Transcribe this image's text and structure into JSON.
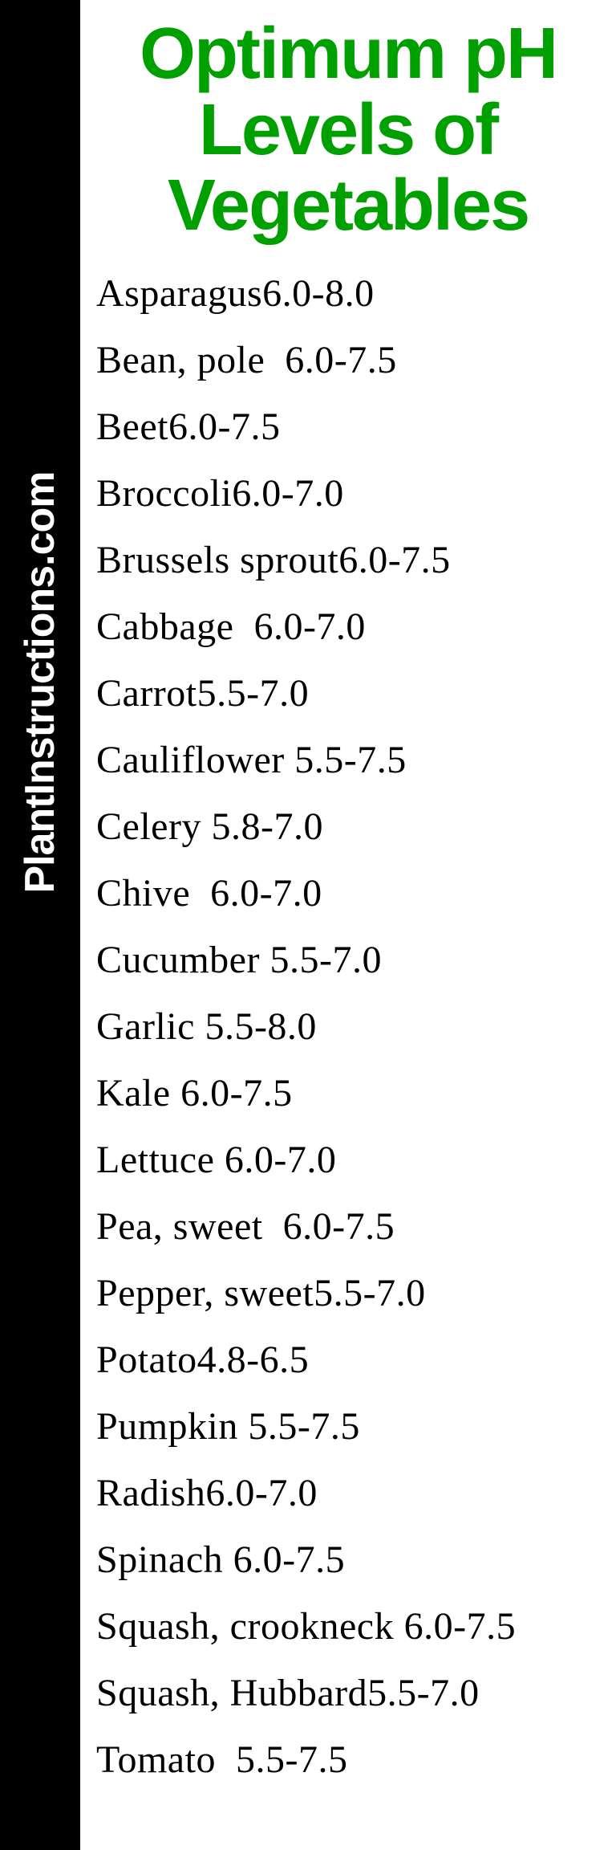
{
  "title_line1": "Optimum pH",
  "title_line2": "Levels of",
  "title_line3": "Vegetables",
  "title_color": "#00a000",
  "sidebar_text": "PlantInstructions.com",
  "sidebar_bg": "#000000",
  "sidebar_text_color": "#ffffff",
  "list_font_family": "Comic Sans MS",
  "list_font_size": 48,
  "title_font_size": 90,
  "vegetables": [
    {
      "name": "Asparagus",
      "sep": "",
      "range": "6.0-8.0"
    },
    {
      "name": "Bean, pole",
      "sep": "  ",
      "range": "6.0-7.5"
    },
    {
      "name": "Beet",
      "sep": "",
      "range": "6.0-7.5"
    },
    {
      "name": "Broccoli",
      "sep": "",
      "range": "6.0-7.0"
    },
    {
      "name": "Brussels sprout",
      "sep": "",
      "range": "6.0-7.5"
    },
    {
      "name": "Cabbage",
      "sep": "  ",
      "range": "6.0-7.0"
    },
    {
      "name": "Carrot",
      "sep": "",
      "range": "5.5-7.0"
    },
    {
      "name": "Cauliflower",
      "sep": " ",
      "range": "5.5-7.5"
    },
    {
      "name": "Celery",
      "sep": " ",
      "range": "5.8-7.0"
    },
    {
      "name": "Chive",
      "sep": "  ",
      "range": "6.0-7.0"
    },
    {
      "name": "Cucumber",
      "sep": " ",
      "range": "5.5-7.0"
    },
    {
      "name": "Garlic",
      "sep": " ",
      "range": "5.5-8.0"
    },
    {
      "name": "Kale",
      "sep": " ",
      "range": "6.0-7.5"
    },
    {
      "name": "Lettuce",
      "sep": " ",
      "range": "6.0-7.0"
    },
    {
      "name": "Pea, sweet",
      "sep": "  ",
      "range": "6.0-7.5"
    },
    {
      "name": "Pepper, sweet",
      "sep": "",
      "range": "5.5-7.0"
    },
    {
      "name": "Potato",
      "sep": "",
      "range": "4.8-6.5"
    },
    {
      "name": "Pumpkin",
      "sep": " ",
      "range": "5.5-7.5"
    },
    {
      "name": "Radish",
      "sep": "",
      "range": "6.0-7.0"
    },
    {
      "name": "Spinach",
      "sep": " ",
      "range": "6.0-7.5"
    },
    {
      "name": "Squash, crookneck",
      "sep": " ",
      "range": "6.0-7.5"
    },
    {
      "name": "Squash, Hubbard",
      "sep": "",
      "range": "5.5-7.0"
    },
    {
      "name": "Tomato",
      "sep": "  ",
      "range": "5.5-7.5"
    }
  ]
}
